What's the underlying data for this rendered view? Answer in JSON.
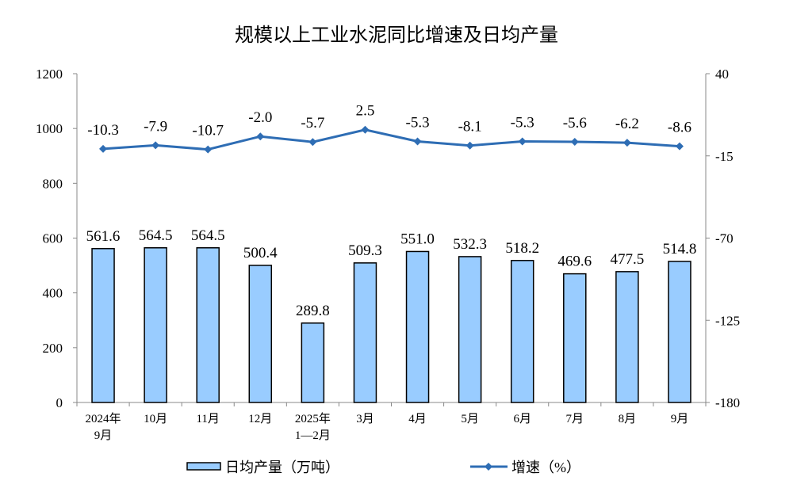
{
  "chart_data": {
    "type": "bar+line",
    "title": "规模以上工业水泥同比增速及日均产量",
    "categories": [
      [
        "2024年",
        "9月"
      ],
      [
        "10月"
      ],
      [
        "11月"
      ],
      [
        "12月"
      ],
      [
        "2025年",
        "1—2月"
      ],
      [
        "3月"
      ],
      [
        "4月"
      ],
      [
        "5月"
      ],
      [
        "6月"
      ],
      [
        "7月"
      ],
      [
        "8月"
      ],
      [
        "9月"
      ]
    ],
    "series": [
      {
        "name": "日均产量（万吨）",
        "type": "bar",
        "axis": "left",
        "color": "#99CCFF",
        "values": [
          561.6,
          564.5,
          564.5,
          500.4,
          289.8,
          509.3,
          551.0,
          532.3,
          518.2,
          469.6,
          477.5,
          514.8
        ]
      },
      {
        "name": "增速（%）",
        "type": "line",
        "axis": "right",
        "color": "#2E6DB4",
        "values": [
          -10.3,
          -7.9,
          -10.7,
          -2.0,
          -5.7,
          2.5,
          -5.3,
          -8.1,
          -5.3,
          -5.6,
          -6.2,
          -8.6
        ]
      }
    ],
    "left_axis": {
      "ylim": [
        0,
        1200
      ],
      "ticks": [
        0,
        200,
        400,
        600,
        800,
        1000,
        1200
      ]
    },
    "right_axis": {
      "ylim": [
        -180,
        40
      ],
      "ticks": [
        -180,
        -125,
        -70,
        -15,
        40
      ]
    },
    "grid": false,
    "legend": "bottom"
  }
}
